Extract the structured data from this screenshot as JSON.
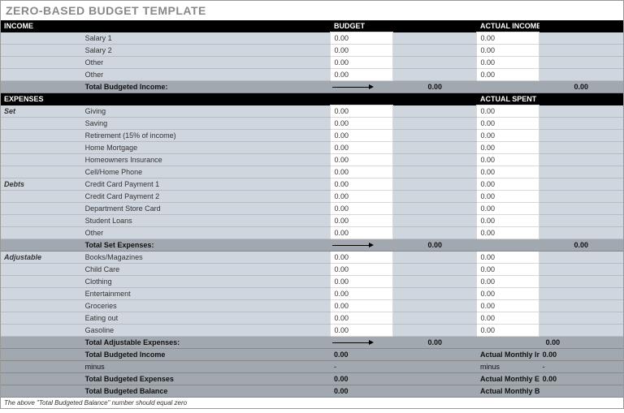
{
  "title": "ZERO-BASED BUDGET TEMPLATE",
  "headers": {
    "income": "Income",
    "budget": "Budget",
    "actual_income": "Actual Income",
    "expenses": "Expenses",
    "actual_spent": "Actual Spent"
  },
  "income": {
    "items": [
      {
        "label": "Salary 1",
        "budget": "0.00",
        "actual": "0.00"
      },
      {
        "label": "Salary 2",
        "budget": "0.00",
        "actual": "0.00"
      },
      {
        "label": "Other",
        "budget": "0.00",
        "actual": "0.00"
      },
      {
        "label": "Other",
        "budget": "0.00",
        "actual": "0.00"
      }
    ],
    "total_label": "Total Budgeted Income:",
    "total_budget": "0.00",
    "total_actual": "0.00"
  },
  "expenses": {
    "set": {
      "category": "Set",
      "items": [
        {
          "label": "Giving",
          "budget": "0.00",
          "actual": "0.00"
        },
        {
          "label": "Saving",
          "budget": "0.00",
          "actual": "0.00"
        },
        {
          "label": "Retirement (15% of income)",
          "budget": "0.00",
          "actual": "0.00"
        },
        {
          "label": "Home Mortgage",
          "budget": "0.00",
          "actual": "0.00"
        },
        {
          "label": "Homeowners Insurance",
          "budget": "0.00",
          "actual": "0.00"
        },
        {
          "label": "Cell/Home Phone",
          "budget": "0.00",
          "actual": "0.00"
        }
      ]
    },
    "debts": {
      "category": "Debts",
      "items": [
        {
          "label": "Credit Card Payment 1",
          "budget": "0.00",
          "actual": "0.00"
        },
        {
          "label": "Credit Card Payment 2",
          "budget": "0.00",
          "actual": "0.00"
        },
        {
          "label": "Department Store Card",
          "budget": "0.00",
          "actual": "0.00"
        },
        {
          "label": "Student Loans",
          "budget": "0.00",
          "actual": "0.00"
        },
        {
          "label": "Other",
          "budget": "0.00",
          "actual": "0.00"
        }
      ]
    },
    "set_total_label": "Total Set Expenses:",
    "set_total_budget": "0.00",
    "set_total_actual": "0.00",
    "adjustable": {
      "category": "Adjustable",
      "items": [
        {
          "label": "Books/Magazines",
          "budget": "0.00",
          "actual": "0.00"
        },
        {
          "label": "Child Care",
          "budget": "0.00",
          "actual": "0.00"
        },
        {
          "label": "Clothing",
          "budget": "0.00",
          "actual": "0.00"
        },
        {
          "label": "Entertainment",
          "budget": "0.00",
          "actual": "0.00"
        },
        {
          "label": "Groceries",
          "budget": "0.00",
          "actual": "0.00"
        },
        {
          "label": "Eating out",
          "budget": "0.00",
          "actual": "0.00"
        },
        {
          "label": "Gasoline",
          "budget": "0.00",
          "actual": "0.00"
        }
      ]
    },
    "adj_total_label": "Total Adjustable Expenses:",
    "adj_total_budget": "0.00",
    "adj_total_actual": "0.00"
  },
  "summary": {
    "tbi_label": "Total Budgeted Income",
    "tbi_value": "0.00",
    "ami_label": "Actual Monthly Income",
    "ami_value": "0.00",
    "minus": "minus",
    "dash": "-",
    "tbe_label": "Total Budgeted Expenses",
    "tbe_value": "0.00",
    "ame_label": "Actual Monthly Expenses",
    "ame_value": "0.00",
    "tbb_label": "Total Budgeted Balance",
    "tbb_value": "0.00",
    "amb_label": "Actual Monthly Balance",
    "amb_value": ""
  },
  "footnote": "The above \"Total Budgeted Balance\" number should equal zero"
}
